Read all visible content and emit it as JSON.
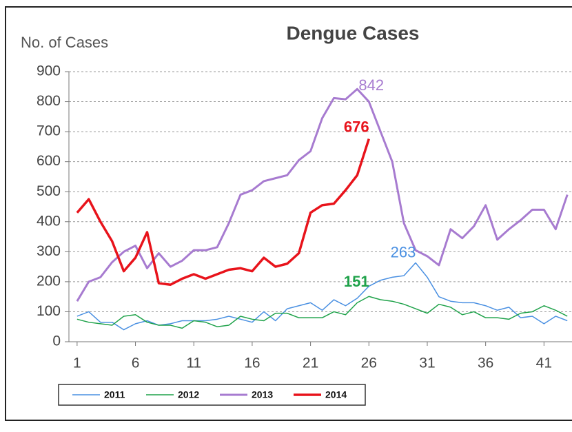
{
  "chart_data": {
    "type": "line",
    "title": "Dengue Cases",
    "y_label": "No. of Cases",
    "x": [
      1,
      2,
      3,
      4,
      5,
      6,
      7,
      8,
      9,
      10,
      11,
      12,
      13,
      14,
      15,
      16,
      17,
      18,
      19,
      20,
      21,
      22,
      23,
      24,
      25,
      26,
      27,
      28,
      29,
      30,
      31,
      32,
      33,
      34,
      35,
      36,
      37,
      38,
      39,
      40,
      41,
      42,
      43
    ],
    "series": [
      {
        "name": "2011",
        "color": "#4a90e2",
        "width": 1.5,
        "values": [
          85,
          100,
          65,
          65,
          40,
          60,
          70,
          55,
          60,
          70,
          70,
          70,
          75,
          85,
          75,
          65,
          100,
          70,
          110,
          120,
          130,
          105,
          140,
          120,
          145,
          185,
          205,
          215,
          220,
          263,
          215,
          150,
          135,
          130,
          130,
          120,
          105,
          115,
          80,
          85,
          60,
          85,
          70
        ]
      },
      {
        "name": "2012",
        "color": "#1fa24a",
        "width": 1.5,
        "values": [
          75,
          65,
          60,
          55,
          85,
          90,
          65,
          55,
          55,
          45,
          70,
          65,
          50,
          55,
          85,
          75,
          70,
          95,
          95,
          80,
          80,
          80,
          100,
          90,
          130,
          151,
          140,
          135,
          125,
          110,
          95,
          125,
          115,
          90,
          100,
          80,
          80,
          75,
          95,
          100,
          120,
          105,
          85
        ]
      },
      {
        "name": "2013",
        "color": "#a77bd0",
        "width": 3,
        "values": [
          135,
          200,
          215,
          265,
          300,
          320,
          245,
          295,
          250,
          270,
          305,
          305,
          315,
          395,
          490,
          505,
          535,
          545,
          555,
          605,
          635,
          745,
          812,
          808,
          842,
          800,
          700,
          600,
          395,
          305,
          285,
          255,
          375,
          345,
          385,
          455,
          340,
          375,
          405,
          440,
          440,
          375,
          490
        ]
      },
      {
        "name": "2014",
        "color": "#e8131b",
        "width": 3.5,
        "values": [
          430,
          475,
          400,
          335,
          235,
          280,
          365,
          195,
          190,
          210,
          225,
          210,
          225,
          240,
          245,
          235,
          280,
          250,
          260,
          295,
          430,
          455,
          460,
          505,
          555,
          676,
          null,
          null,
          null,
          null,
          null,
          null,
          null,
          null,
          null,
          null,
          null,
          null,
          null,
          null,
          null,
          null,
          null
        ]
      }
    ],
    "annotations": [
      {
        "x": 25,
        "value": 842,
        "color": "#a77bd0"
      },
      {
        "x": 26,
        "value": 676,
        "color": "#e8131b"
      },
      {
        "x": 30,
        "value": 263,
        "color": "#4a90e2"
      },
      {
        "x": 26,
        "value": 151,
        "color": "#1fa24a"
      }
    ],
    "xlim": [
      0.3,
      43.4
    ],
    "xticks": [
      1,
      6,
      11,
      16,
      21,
      26,
      31,
      36,
      41
    ],
    "ylim": [
      0,
      900
    ],
    "yticks": [
      0,
      100,
      200,
      300,
      400,
      500,
      600,
      700,
      800,
      900
    ],
    "grid": true
  }
}
